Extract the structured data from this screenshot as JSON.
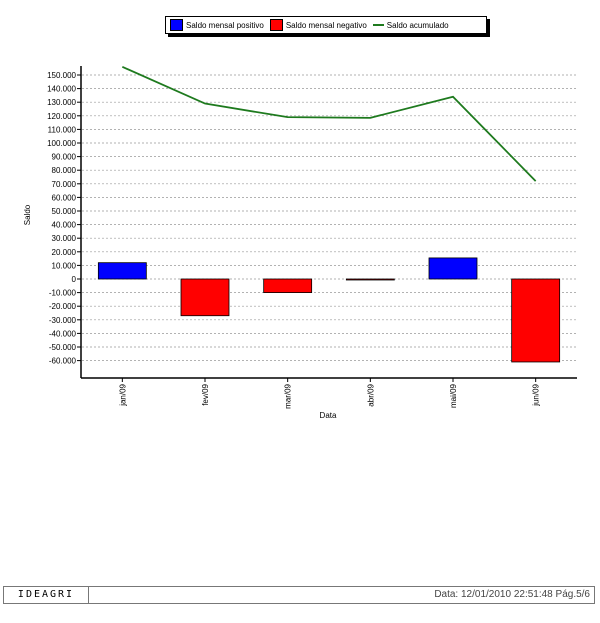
{
  "chart_data": {
    "type": "bar",
    "title": "",
    "xlabel": "Data",
    "ylabel": "Saldo",
    "categories": [
      "jan/09",
      "fev/09",
      "mar/09",
      "abr/09",
      "mai/09",
      "jun/09"
    ],
    "ylim": [
      -70000,
      160000
    ],
    "yticks": [
      150000,
      140000,
      130000,
      120000,
      110000,
      100000,
      90000,
      80000,
      70000,
      60000,
      50000,
      40000,
      30000,
      20000,
      10000,
      0,
      -10000,
      -20000,
      -30000,
      -40000,
      -50000,
      -60000
    ],
    "ytick_labels": [
      "150.000",
      "140.000",
      "130.000",
      "120.000",
      "110.000",
      "100.000",
      "90.000",
      "80.000",
      "70.000",
      "60.000",
      "50.000",
      "40.000",
      "30.000",
      "20.000",
      "10.000",
      "0",
      "-10.000",
      "-20.000",
      "-30.000",
      "-40.000",
      "-50.000",
      "-60.000"
    ],
    "grid": true,
    "legend_position": "top-center",
    "series": [
      {
        "name": "Saldo mensal positivo",
        "kind": "bar",
        "color": "#0000ff",
        "values": [
          12000,
          null,
          null,
          null,
          15500,
          null
        ]
      },
      {
        "name": "Saldo mensal negativo",
        "kind": "bar",
        "color": "#ff0000",
        "values": [
          null,
          -27000,
          -10000,
          -500,
          null,
          -61000
        ]
      },
      {
        "name": "Saldo acumulado",
        "kind": "line",
        "color": "#1e7a1e",
        "values": [
          156000,
          129000,
          119000,
          118500,
          134000,
          72000
        ]
      }
    ]
  },
  "footer": {
    "brand": "IDEAGRI",
    "meta": "Data: 12/01/2010 22:51:48 Pág.5/6"
  }
}
